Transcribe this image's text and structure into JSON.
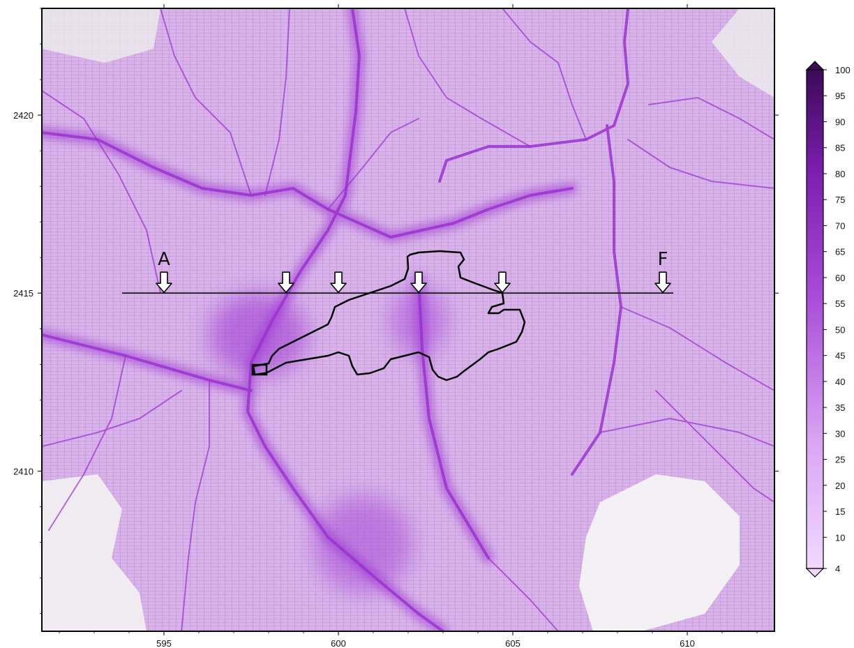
{
  "map": {
    "x_axis": {
      "min": 591.5,
      "max": 612.5,
      "ticks": [
        595,
        600,
        605,
        610
      ]
    },
    "y_axis": {
      "min": 2405.5,
      "max": 2423,
      "ticks": [
        2410,
        2415,
        2420
      ]
    },
    "transect": {
      "y": 2415,
      "start_label": "A",
      "end_label": "F",
      "arrow_x": [
        595,
        598.5,
        600,
        602.3,
        604.7,
        609.3
      ]
    },
    "colors": {
      "background_light": "#e7c8f3",
      "road": "#9b32d1",
      "outline": "#000000",
      "white_area": "#f4f4f4"
    }
  },
  "colorbar": {
    "min": 4,
    "max": 100,
    "labels": [
      "100",
      "95",
      "90",
      "85",
      "80",
      "75",
      "70",
      "65",
      "60",
      "55",
      "50",
      "45",
      "40",
      "35",
      "30",
      "25",
      "20",
      "15",
      "10",
      "4"
    ],
    "stops": [
      "#f0d9ff",
      "#d9a6f3",
      "#a74bd8",
      "#7a1eae",
      "#3c0a57"
    ]
  }
}
